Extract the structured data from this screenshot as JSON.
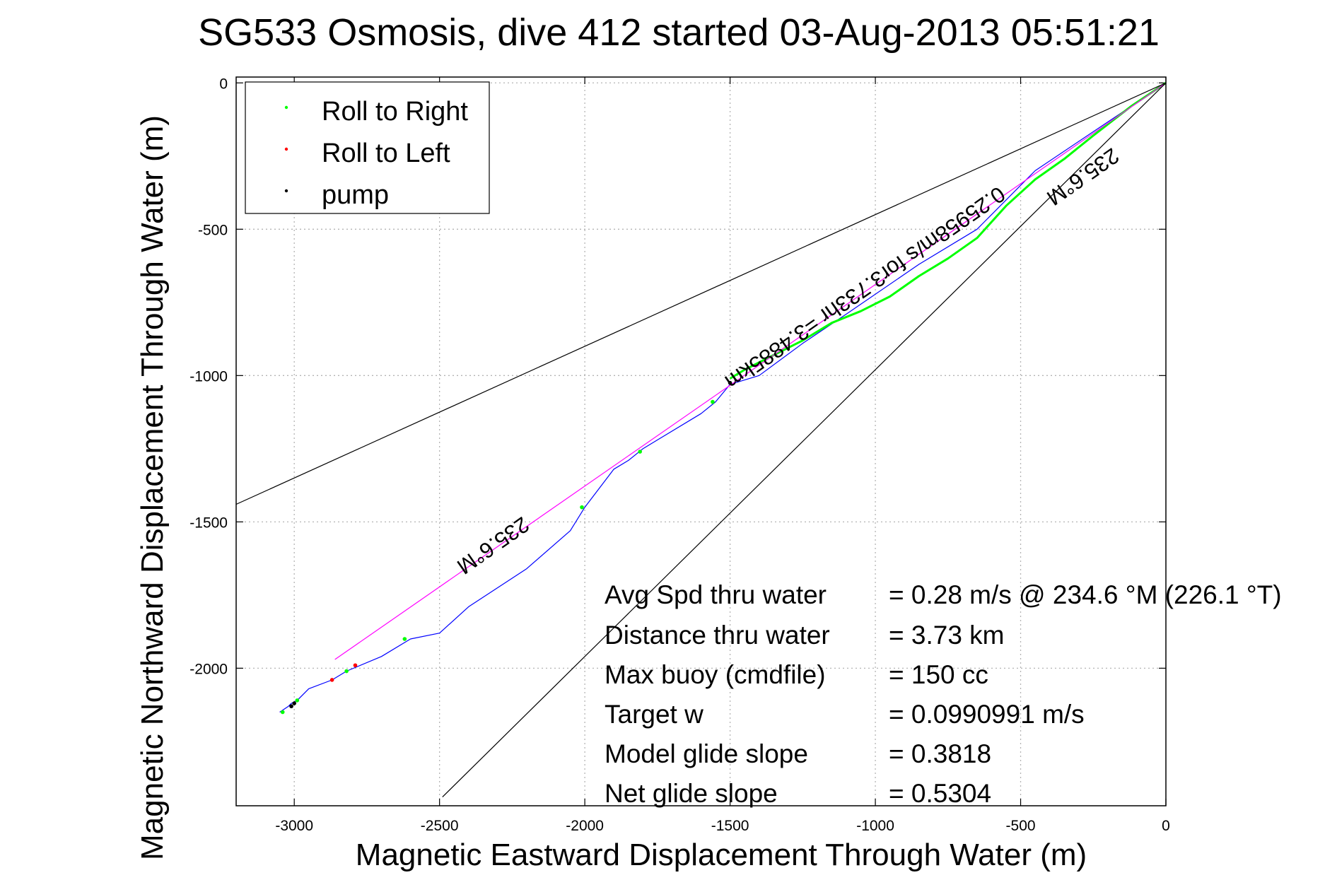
{
  "title": "SG533 Osmosis, dive 412 started 03-Aug-2013 05:51:21",
  "chart_data": {
    "type": "line",
    "title": "SG533 Osmosis, dive 412 started 03-Aug-2013 05:51:21",
    "xlabel": "Magnetic Eastward Displacement Through Water (m)",
    "ylabel": "Magnetic Northward Displacement Through Water (m)",
    "xlim": [
      -3200,
      0
    ],
    "ylim": [
      -2470,
      20
    ],
    "xticks": [
      -3000,
      -2500,
      -2000,
      -1500,
      -1000,
      -500,
      0
    ],
    "xtick_labels": [
      "-3000",
      "-2500",
      "-2000",
      "-1500",
      "-1000",
      "-500",
      "0"
    ],
    "yticks": [
      0,
      -500,
      -1000,
      -1500,
      -2000
    ],
    "ytick_labels": [
      "0",
      "-500",
      "-1000",
      "-1500",
      "-2000"
    ],
    "grid": true,
    "legend": {
      "position": "top-left",
      "entries": [
        {
          "label": "Roll to Right",
          "color": "#00ff00"
        },
        {
          "label": "Roll to Left",
          "color": "#ff0000"
        },
        {
          "label": "pump",
          "color": "#000000"
        }
      ]
    },
    "series": [
      {
        "kind": "track",
        "color": "#0000ff",
        "x": [
          0,
          -150,
          -300,
          -450,
          -650,
          -850,
          -1100,
          -1250,
          -1400,
          -1500,
          -1550,
          -1600,
          -1750,
          -1800,
          -1850,
          -1900,
          -2000,
          -2050,
          -2200,
          -2400,
          -2500,
          -2600,
          -2700,
          -2820,
          -2870,
          -2950,
          -2990,
          -3010,
          -3020,
          -3050
        ],
        "y": [
          0,
          -100,
          -200,
          -300,
          -500,
          -620,
          -790,
          -890,
          -1000,
          -1030,
          -1090,
          -1130,
          -1220,
          -1250,
          -1290,
          -1320,
          -1450,
          -1530,
          -1660,
          -1790,
          -1880,
          -1900,
          -1960,
          -2010,
          -2040,
          -2070,
          -2110,
          -2120,
          -2130,
          -2150
        ]
      },
      {
        "kind": "roll-right",
        "color": "#00ff00",
        "x": [
          0,
          -120,
          -250,
          -350,
          -450,
          -550,
          -650,
          -750,
          -850,
          -950,
          -1050,
          -1150,
          -1250,
          -1350,
          -1450,
          -1500
        ],
        "y": [
          0,
          -80,
          -180,
          -260,
          -330,
          -420,
          -530,
          -600,
          -660,
          -730,
          -780,
          -820,
          -880,
          -930,
          -980,
          -1010
        ]
      },
      {
        "kind": "roll-right-points",
        "color": "#00ff00",
        "x": [
          -1560,
          -1810,
          -2010,
          -2620,
          -2820,
          -2990,
          -3040
        ],
        "y": [
          -1090,
          -1260,
          -1450,
          -1900,
          -2010,
          -2110,
          -2150
        ]
      },
      {
        "kind": "roll-left-points",
        "color": "#ff0000",
        "x": [
          -2790,
          -2870
        ],
        "y": [
          -1990,
          -2040
        ]
      },
      {
        "kind": "pump-points",
        "color": "#000000",
        "x": [
          -1500,
          -3000,
          -3010
        ],
        "y": [
          -1025,
          -2120,
          -2130
        ]
      },
      {
        "kind": "heading-line",
        "color": "#ff00ff",
        "x": [
          0,
          -2860
        ],
        "y": [
          0,
          -1970
        ]
      },
      {
        "kind": "envelope-upper",
        "color": "#000000",
        "x": [
          0,
          -3200
        ],
        "y": [
          0,
          -1440
        ]
      },
      {
        "kind": "envelope-lower",
        "color": "#000000",
        "x": [
          0,
          -2490
        ],
        "y": [
          0,
          -2440
        ]
      }
    ],
    "annotations": [
      {
        "text": "235.6°M",
        "x": -2330,
        "y": -1560,
        "rotation": 145
      },
      {
        "text": "235.6°M",
        "x": -300,
        "y": -300,
        "rotation": 145
      },
      {
        "text": "0.25958m/s for3.733hr =3.4885km",
        "x": -1050,
        "y": -680,
        "rotation": 145
      }
    ]
  },
  "stats": [
    {
      "label": "Avg Spd thru water",
      "value": "=  0.28 m/s @ 234.6 °M (226.1 °T)"
    },
    {
      "label": "Distance thru water",
      "value": "=  3.73 km"
    },
    {
      "label": "Max buoy (cmdfile)",
      "value": "= 150 cc"
    },
    {
      "label": "Target w",
      "value": "= 0.0990991 m/s"
    },
    {
      "label": "Model glide slope",
      "value": "= 0.3818"
    },
    {
      "label": "Net glide slope",
      "value": "= 0.5304"
    }
  ]
}
